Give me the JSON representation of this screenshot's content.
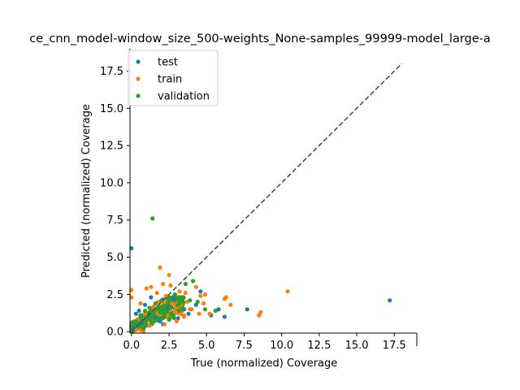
{
  "chart_data": {
    "type": "scatter",
    "title": "ce_cnn_model-window_size_500-weights_None-samples_99999-model_large-a",
    "xlabel": "True (normalized) Coverage",
    "ylabel": "Predicted (normalized) Coverage",
    "xlim": [
      -0.1,
      19.0
    ],
    "ylim": [
      -0.1,
      19.0
    ],
    "xticks": [
      "0.0",
      "2.5",
      "5.0",
      "7.5",
      "10.0",
      "12.5",
      "15.0",
      "17.5"
    ],
    "yticks": [
      "0.0",
      "2.5",
      "5.0",
      "7.5",
      "10.0",
      "12.5",
      "15.0",
      "17.5"
    ],
    "grid": false,
    "legend_position": "top-left",
    "reference_line": {
      "style": "dashed",
      "color": "#444444",
      "from": [
        0,
        0
      ],
      "to": [
        18,
        18
      ]
    },
    "series": [
      {
        "name": "test",
        "color": "#1f77b4",
        "points": [
          [
            0.0,
            5.6
          ],
          [
            17.2,
            2.1
          ],
          [
            7.7,
            1.5
          ],
          [
            6.2,
            1.0
          ],
          [
            5.8,
            1.5
          ],
          [
            5.3,
            1.1
          ],
          [
            4.6,
            2.7
          ],
          [
            4.3,
            1.8
          ],
          [
            3.8,
            1.2
          ],
          [
            2.1,
            0.5
          ],
          [
            1.3,
            2.3
          ],
          [
            0.9,
            1.8
          ],
          [
            0.5,
            1.4
          ],
          [
            1.6,
            1.0
          ],
          [
            2.4,
            1.6
          ],
          [
            3.1,
            0.9
          ],
          [
            0.2,
            0.3
          ],
          [
            0.1,
            0.1
          ],
          [
            1.9,
            0.7
          ],
          [
            2.8,
            2.2
          ],
          [
            0.7,
            0.6
          ],
          [
            1.1,
            0.9
          ],
          [
            3.5,
            1.5
          ],
          [
            0.3,
            1.2
          ]
        ]
      },
      {
        "name": "train",
        "color": "#ff7f0e",
        "points": [
          [
            10.4,
            2.7
          ],
          [
            8.6,
            1.3
          ],
          [
            8.5,
            1.1
          ],
          [
            6.6,
            1.8
          ],
          [
            6.3,
            2.3
          ],
          [
            6.2,
            2.2
          ],
          [
            5.2,
            1.2
          ],
          [
            4.9,
            2.5
          ],
          [
            4.8,
            1.9
          ],
          [
            4.6,
            2.4
          ],
          [
            4.3,
            3.0
          ],
          [
            4.0,
            1.5
          ],
          [
            3.9,
            1.5
          ],
          [
            3.6,
            2.6
          ],
          [
            3.5,
            1.0
          ],
          [
            1.9,
            4.3
          ],
          [
            2.5,
            3.8
          ],
          [
            2.1,
            3.2
          ],
          [
            2.6,
            3.1
          ],
          [
            3.2,
            2.7
          ],
          [
            1.3,
            3.0
          ],
          [
            1.7,
            2.6
          ],
          [
            1.0,
            2.9
          ],
          [
            0.0,
            2.8
          ],
          [
            0.0,
            2.3
          ],
          [
            0.3,
            0.1
          ],
          [
            0.6,
            0.1
          ],
          [
            0.8,
            0.0
          ],
          [
            2.2,
            0.5
          ],
          [
            3.0,
            0.7
          ],
          [
            2.7,
            1.9
          ],
          [
            1.5,
            1.6
          ],
          [
            0.9,
            1.2
          ],
          [
            0.4,
            0.8
          ],
          [
            2.3,
            2.4
          ],
          [
            3.3,
            1.8
          ],
          [
            1.2,
            0.4
          ],
          [
            0.6,
            1.9
          ],
          [
            1.8,
            2.0
          ],
          [
            2.9,
            1.3
          ],
          [
            3.7,
            2.0
          ],
          [
            4.5,
            1.2
          ]
        ]
      },
      {
        "name": "validation",
        "color": "#2ca02c",
        "points": [
          [
            1.4,
            7.6
          ],
          [
            4.1,
            3.4
          ],
          [
            3.6,
            3.2
          ],
          [
            5.6,
            1.4
          ],
          [
            4.9,
            1.5
          ],
          [
            4.4,
            2.0
          ],
          [
            2.9,
            2.5
          ],
          [
            2.4,
            2.2
          ],
          [
            2.0,
            2.1
          ],
          [
            1.6,
            1.9
          ],
          [
            1.2,
            1.6
          ],
          [
            0.9,
            1.4
          ],
          [
            0.6,
            1.1
          ],
          [
            0.3,
            0.7
          ],
          [
            1.8,
            1.5
          ],
          [
            2.2,
            1.3
          ],
          [
            2.6,
            1.6
          ],
          [
            3.2,
            1.9
          ],
          [
            0.5,
            0.4
          ],
          [
            1.0,
            0.8
          ],
          [
            1.5,
            1.1
          ],
          [
            3.4,
            1.5
          ],
          [
            2.8,
            1.1
          ],
          [
            0.8,
            0.2
          ],
          [
            1.3,
            0.9
          ],
          [
            2.0,
            0.9
          ],
          [
            0.1,
            0.0
          ],
          [
            0.0,
            0.4
          ],
          [
            3.9,
            2.1
          ],
          [
            2.5,
            0.8
          ]
        ]
      }
    ],
    "dense_cluster": {
      "note": "Dense overlapping blob near origin; rendered as many overlapping points",
      "x_range": [
        0.0,
        3.5
      ],
      "y_range": [
        0.0,
        2.3
      ]
    }
  }
}
